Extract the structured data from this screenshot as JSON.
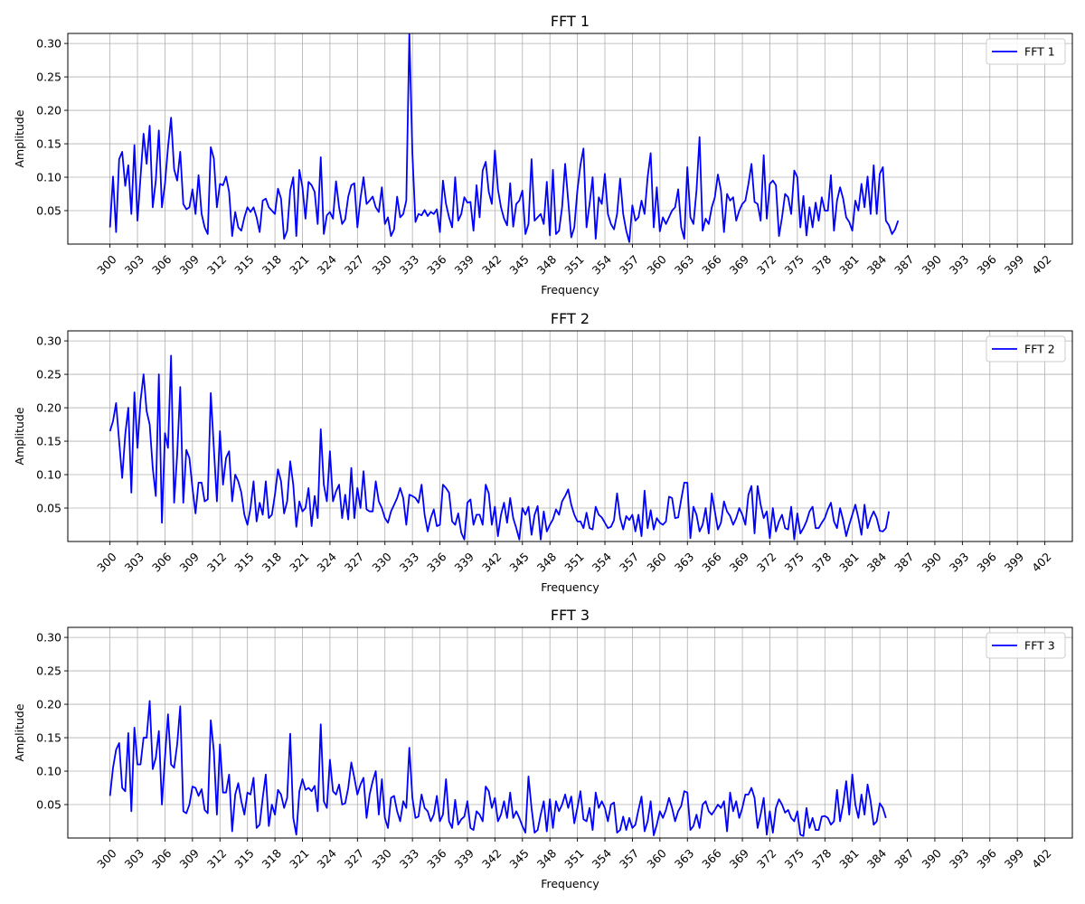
{
  "chart_data": [
    {
      "type": "line",
      "title": "FFT 1",
      "xlabel": "Frequency",
      "ylabel": "Amplitude",
      "xlim": [
        295.4,
        405.0
      ],
      "ylim": [
        0.0,
        0.315
      ],
      "xticks": [
        300,
        303,
        306,
        309,
        312,
        315,
        318,
        321,
        324,
        327,
        330,
        333,
        336,
        339,
        342,
        345,
        348,
        351,
        354,
        357,
        360,
        363,
        366,
        369,
        372,
        375,
        378,
        381,
        384,
        387,
        390,
        393,
        396,
        399,
        402
      ],
      "yticks": [
        0.05,
        0.1,
        0.15,
        0.2,
        0.25,
        0.3
      ],
      "grid": true,
      "legend_position": "top-right",
      "color": "#0000ff",
      "series": [
        {
          "name": "FFT 1",
          "x_start": 300,
          "x_step": 0.3333,
          "values": [
            0.025,
            0.101,
            0.018,
            0.127,
            0.138,
            0.087,
            0.118,
            0.045,
            0.148,
            0.035,
            0.1,
            0.165,
            0.12,
            0.177,
            0.055,
            0.095,
            0.17,
            0.055,
            0.09,
            0.145,
            0.189,
            0.112,
            0.095,
            0.138,
            0.06,
            0.052,
            0.055,
            0.082,
            0.045,
            0.103,
            0.045,
            0.025,
            0.015,
            0.145,
            0.128,
            0.055,
            0.09,
            0.088,
            0.101,
            0.078,
            0.012,
            0.048,
            0.025,
            0.02,
            0.04,
            0.055,
            0.048,
            0.055,
            0.04,
            0.018,
            0.065,
            0.068,
            0.055,
            0.05,
            0.045,
            0.083,
            0.068,
            0.008,
            0.02,
            0.08,
            0.1,
            0.012,
            0.111,
            0.085,
            0.038,
            0.093,
            0.088,
            0.078,
            0.03,
            0.13,
            0.015,
            0.043,
            0.048,
            0.038,
            0.094,
            0.055,
            0.03,
            0.037,
            0.071,
            0.088,
            0.091,
            0.025,
            0.068,
            0.1,
            0.06,
            0.065,
            0.071,
            0.055,
            0.048,
            0.085,
            0.03,
            0.04,
            0.012,
            0.022,
            0.071,
            0.04,
            0.045,
            0.065,
            0.315,
            0.135,
            0.033,
            0.045,
            0.043,
            0.051,
            0.042,
            0.048,
            0.045,
            0.052,
            0.018,
            0.095,
            0.06,
            0.04,
            0.025,
            0.1,
            0.035,
            0.045,
            0.07,
            0.062,
            0.063,
            0.02,
            0.088,
            0.04,
            0.11,
            0.123,
            0.078,
            0.06,
            0.14,
            0.082,
            0.055,
            0.038,
            0.028,
            0.091,
            0.026,
            0.06,
            0.065,
            0.08,
            0.015,
            0.03,
            0.127,
            0.035,
            0.04,
            0.045,
            0.03,
            0.093,
            0.013,
            0.111,
            0.015,
            0.02,
            0.055,
            0.12,
            0.065,
            0.01,
            0.025,
            0.08,
            0.118,
            0.143,
            0.025,
            0.06,
            0.1,
            0.008,
            0.07,
            0.06,
            0.105,
            0.045,
            0.03,
            0.022,
            0.045,
            0.098,
            0.045,
            0.02,
            0.003,
            0.058,
            0.035,
            0.04,
            0.065,
            0.045,
            0.1,
            0.136,
            0.025,
            0.085,
            0.019,
            0.04,
            0.03,
            0.04,
            0.05,
            0.055,
            0.082,
            0.025,
            0.008,
            0.115,
            0.04,
            0.03,
            0.08,
            0.16,
            0.02,
            0.038,
            0.03,
            0.055,
            0.07,
            0.104,
            0.08,
            0.018,
            0.075,
            0.065,
            0.07,
            0.035,
            0.05,
            0.06,
            0.065,
            0.09,
            0.12,
            0.063,
            0.06,
            0.035,
            0.133,
            0.038,
            0.09,
            0.095,
            0.088,
            0.012,
            0.04,
            0.075,
            0.07,
            0.045,
            0.11,
            0.1,
            0.025,
            0.072,
            0.013,
            0.055,
            0.025,
            0.062,
            0.035,
            0.07,
            0.05,
            0.05,
            0.103,
            0.02,
            0.065,
            0.085,
            0.068,
            0.04,
            0.033,
            0.02,
            0.065,
            0.05,
            0.09,
            0.055,
            0.101,
            0.045,
            0.118,
            0.045,
            0.105,
            0.115,
            0.035,
            0.028,
            0.015,
            0.022,
            0.035
          ]
        }
      ]
    },
    {
      "type": "line",
      "title": "FFT 2",
      "xlabel": "Frequency",
      "ylabel": "Amplitude",
      "xlim": [
        295.4,
        405.0
      ],
      "ylim": [
        0.0,
        0.315
      ],
      "xticks": [
        300,
        303,
        306,
        309,
        312,
        315,
        318,
        321,
        324,
        327,
        330,
        333,
        336,
        339,
        342,
        345,
        348,
        351,
        354,
        357,
        360,
        363,
        366,
        369,
        372,
        375,
        378,
        381,
        384,
        387,
        390,
        393,
        396,
        399,
        402
      ],
      "yticks": [
        0.05,
        0.1,
        0.15,
        0.2,
        0.25,
        0.3
      ],
      "grid": true,
      "legend_position": "top-right",
      "color": "#0000ff",
      "series": [
        {
          "name": "FFT 2",
          "x_start": 300,
          "x_step": 0.3333,
          "values": [
            0.165,
            0.18,
            0.207,
            0.15,
            0.095,
            0.16,
            0.2,
            0.073,
            0.223,
            0.14,
            0.21,
            0.25,
            0.195,
            0.175,
            0.11,
            0.068,
            0.25,
            0.028,
            0.162,
            0.14,
            0.278,
            0.058,
            0.13,
            0.231,
            0.058,
            0.137,
            0.125,
            0.08,
            0.042,
            0.088,
            0.088,
            0.06,
            0.063,
            0.222,
            0.14,
            0.06,
            0.165,
            0.085,
            0.125,
            0.135,
            0.06,
            0.1,
            0.09,
            0.073,
            0.04,
            0.025,
            0.05,
            0.09,
            0.03,
            0.058,
            0.04,
            0.09,
            0.035,
            0.04,
            0.07,
            0.108,
            0.09,
            0.042,
            0.06,
            0.12,
            0.085,
            0.022,
            0.06,
            0.045,
            0.05,
            0.08,
            0.023,
            0.068,
            0.035,
            0.168,
            0.085,
            0.06,
            0.135,
            0.06,
            0.075,
            0.085,
            0.035,
            0.07,
            0.033,
            0.11,
            0.035,
            0.08,
            0.05,
            0.105,
            0.048,
            0.045,
            0.045,
            0.09,
            0.06,
            0.05,
            0.035,
            0.028,
            0.045,
            0.055,
            0.065,
            0.08,
            0.065,
            0.025,
            0.07,
            0.068,
            0.065,
            0.058,
            0.085,
            0.04,
            0.015,
            0.035,
            0.048,
            0.023,
            0.025,
            0.085,
            0.08,
            0.073,
            0.03,
            0.025,
            0.042,
            0.013,
            0.003,
            0.058,
            0.063,
            0.025,
            0.04,
            0.04,
            0.025,
            0.085,
            0.072,
            0.025,
            0.052,
            0.008,
            0.04,
            0.058,
            0.028,
            0.065,
            0.035,
            0.02,
            0.003,
            0.05,
            0.04,
            0.052,
            0.01,
            0.04,
            0.053,
            0.003,
            0.045,
            0.015,
            0.025,
            0.033,
            0.048,
            0.04,
            0.06,
            0.068,
            0.078,
            0.055,
            0.04,
            0.03,
            0.03,
            0.02,
            0.043,
            0.02,
            0.018,
            0.052,
            0.04,
            0.036,
            0.028,
            0.02,
            0.022,
            0.032,
            0.072,
            0.035,
            0.018,
            0.038,
            0.032,
            0.04,
            0.015,
            0.04,
            0.008,
            0.076,
            0.02,
            0.047,
            0.018,
            0.035,
            0.028,
            0.025,
            0.03,
            0.067,
            0.065,
            0.035,
            0.036,
            0.063,
            0.088,
            0.088,
            0.005,
            0.052,
            0.04,
            0.015,
            0.025,
            0.05,
            0.012,
            0.072,
            0.045,
            0.018,
            0.028,
            0.06,
            0.045,
            0.038,
            0.025,
            0.035,
            0.05,
            0.04,
            0.025,
            0.07,
            0.083,
            0.012,
            0.083,
            0.055,
            0.035,
            0.045,
            0.005,
            0.05,
            0.015,
            0.03,
            0.04,
            0.02,
            0.018,
            0.052,
            0.003,
            0.042,
            0.012,
            0.02,
            0.03,
            0.045,
            0.052,
            0.02,
            0.02,
            0.028,
            0.035,
            0.048,
            0.058,
            0.03,
            0.02,
            0.05,
            0.032,
            0.008,
            0.025,
            0.04,
            0.055,
            0.035,
            0.01,
            0.055,
            0.02,
            0.035,
            0.045,
            0.035,
            0.016,
            0.015,
            0.02,
            0.045
          ]
        }
      ]
    },
    {
      "type": "line",
      "title": "FFT 3",
      "xlabel": "Frequency",
      "ylabel": "Amplitude",
      "xlim": [
        295.4,
        405.0
      ],
      "ylim": [
        0.0,
        0.315
      ],
      "xticks": [
        300,
        303,
        306,
        309,
        312,
        315,
        318,
        321,
        324,
        327,
        330,
        333,
        336,
        339,
        342,
        345,
        348,
        351,
        354,
        357,
        360,
        363,
        366,
        369,
        372,
        375,
        378,
        381,
        384,
        387,
        390,
        393,
        396,
        399,
        402
      ],
      "yticks": [
        0.05,
        0.1,
        0.15,
        0.2,
        0.25,
        0.3
      ],
      "grid": true,
      "legend_position": "top-right",
      "color": "#0000ff",
      "series": [
        {
          "name": "FFT 3",
          "x_start": 300,
          "x_step": 0.3333,
          "values": [
            0.063,
            0.105,
            0.132,
            0.142,
            0.075,
            0.07,
            0.157,
            0.04,
            0.165,
            0.11,
            0.11,
            0.15,
            0.15,
            0.205,
            0.103,
            0.12,
            0.16,
            0.05,
            0.12,
            0.185,
            0.11,
            0.105,
            0.14,
            0.197,
            0.04,
            0.037,
            0.05,
            0.077,
            0.075,
            0.063,
            0.073,
            0.042,
            0.037,
            0.176,
            0.13,
            0.035,
            0.14,
            0.068,
            0.068,
            0.095,
            0.01,
            0.065,
            0.082,
            0.055,
            0.035,
            0.068,
            0.065,
            0.09,
            0.015,
            0.02,
            0.06,
            0.095,
            0.018,
            0.05,
            0.035,
            0.072,
            0.065,
            0.045,
            0.06,
            0.156,
            0.03,
            0.005,
            0.07,
            0.088,
            0.072,
            0.075,
            0.07,
            0.078,
            0.04,
            0.17,
            0.055,
            0.045,
            0.117,
            0.07,
            0.065,
            0.08,
            0.05,
            0.052,
            0.075,
            0.113,
            0.09,
            0.065,
            0.08,
            0.09,
            0.03,
            0.065,
            0.085,
            0.1,
            0.035,
            0.088,
            0.03,
            0.015,
            0.06,
            0.063,
            0.04,
            0.025,
            0.055,
            0.045,
            0.135,
            0.06,
            0.03,
            0.032,
            0.065,
            0.045,
            0.04,
            0.025,
            0.035,
            0.063,
            0.025,
            0.035,
            0.088,
            0.025,
            0.015,
            0.057,
            0.02,
            0.028,
            0.032,
            0.055,
            0.015,
            0.012,
            0.04,
            0.035,
            0.025,
            0.077,
            0.07,
            0.045,
            0.06,
            0.025,
            0.035,
            0.055,
            0.03,
            0.068,
            0.03,
            0.04,
            0.03,
            0.018,
            0.008,
            0.092,
            0.045,
            0.008,
            0.012,
            0.035,
            0.055,
            0.01,
            0.058,
            0.015,
            0.055,
            0.04,
            0.05,
            0.065,
            0.045,
            0.062,
            0.022,
            0.045,
            0.07,
            0.028,
            0.025,
            0.045,
            0.012,
            0.068,
            0.045,
            0.055,
            0.045,
            0.025,
            0.05,
            0.053,
            0.008,
            0.012,
            0.032,
            0.012,
            0.03,
            0.015,
            0.02,
            0.042,
            0.062,
            0.01,
            0.025,
            0.055,
            0.004,
            0.02,
            0.04,
            0.03,
            0.042,
            0.06,
            0.045,
            0.025,
            0.04,
            0.048,
            0.07,
            0.068,
            0.012,
            0.018,
            0.035,
            0.015,
            0.05,
            0.055,
            0.04,
            0.035,
            0.042,
            0.05,
            0.045,
            0.055,
            0.01,
            0.068,
            0.04,
            0.055,
            0.03,
            0.045,
            0.065,
            0.065,
            0.075,
            0.06,
            0.015,
            0.035,
            0.06,
            0.005,
            0.04,
            0.008,
            0.045,
            0.058,
            0.05,
            0.038,
            0.042,
            0.03,
            0.025,
            0.04,
            0.005,
            0.003,
            0.045,
            0.015,
            0.03,
            0.012,
            0.012,
            0.032,
            0.033,
            0.03,
            0.02,
            0.025,
            0.072,
            0.025,
            0.05,
            0.085,
            0.035,
            0.095,
            0.05,
            0.03,
            0.065,
            0.035,
            0.08,
            0.055,
            0.02,
            0.025,
            0.052,
            0.045,
            0.03
          ]
        }
      ]
    }
  ]
}
